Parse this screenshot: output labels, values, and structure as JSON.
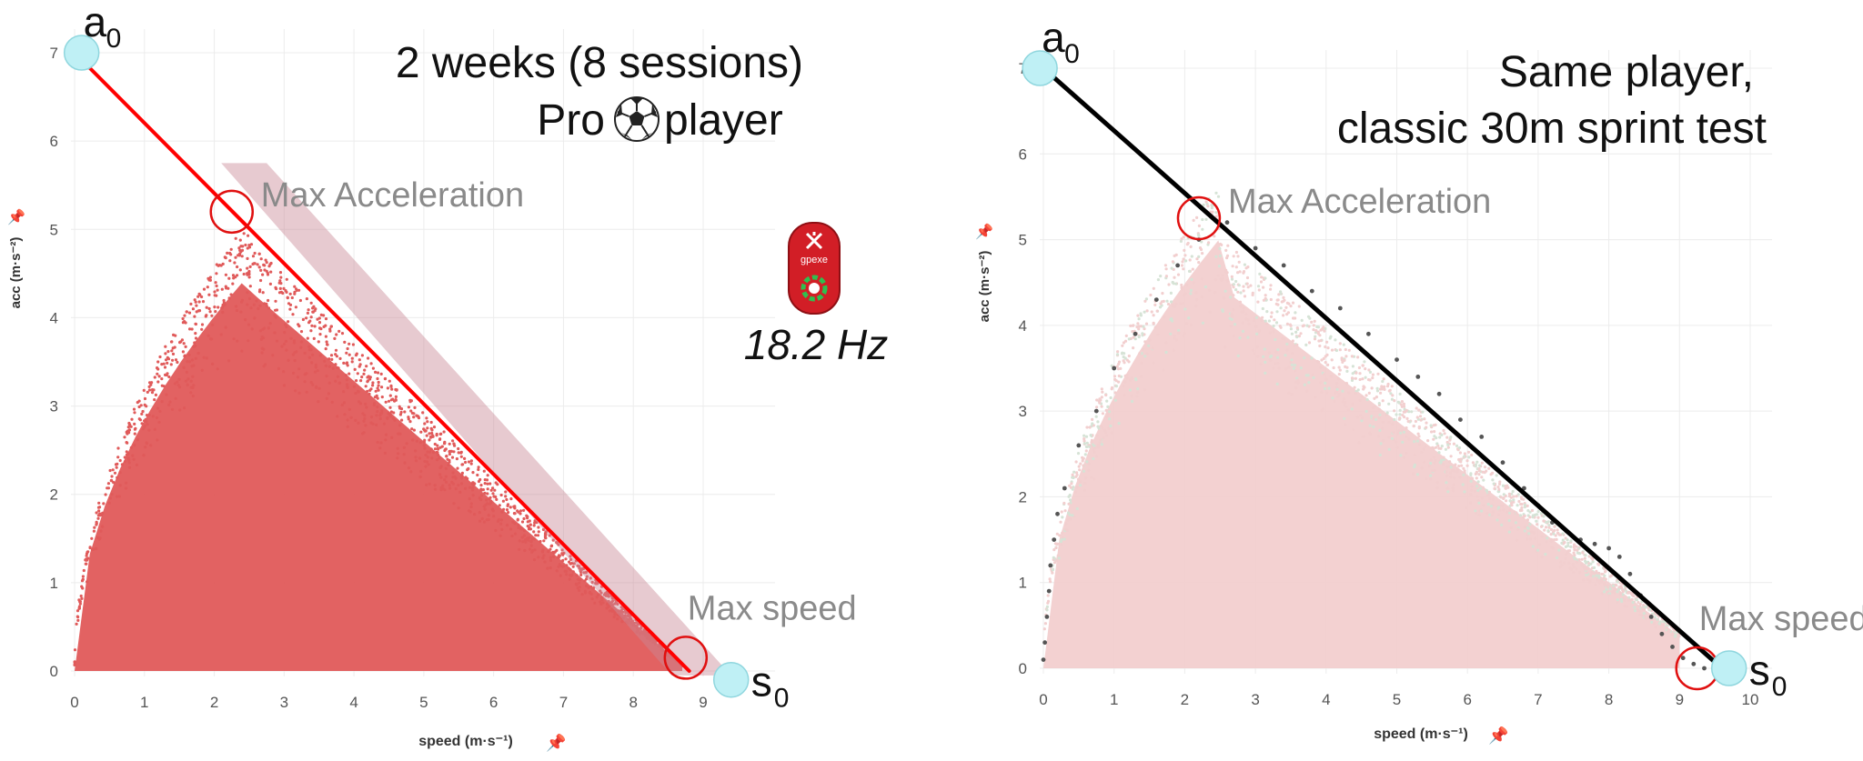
{
  "colors": {
    "left_points": "#e05a5a",
    "left_band": "#c98a96",
    "left_line": "#ff0000",
    "right_points_a": "#f2cfcf",
    "right_points_b": "#d6e3d6",
    "right_sprint_points": "#555555",
    "right_line": "#000000",
    "marker_fill": "#bff0f5",
    "circle": "#e01010",
    "annotation": "#8a8a8a",
    "grid": "#ececec",
    "tick": "#555555"
  },
  "left_device": {
    "icon": "gps-device-icon",
    "brand": "gpexe",
    "rate_label": "18.2 Hz"
  },
  "chart_data": [
    {
      "type": "scatter",
      "panel": "left",
      "title_line1": "2 weeks (8 sessions)",
      "title_line2_pre": "Pro ",
      "title_icon": "soccer-ball-icon",
      "title_line2_post": " player",
      "xlabel": "speed (m·s⁻¹)",
      "ylabel": "acc (m·s⁻²)",
      "xlim": [
        0,
        9
      ],
      "ylim": [
        0,
        7
      ],
      "xticks": [
        "0",
        "1",
        "2",
        "3",
        "4",
        "5",
        "6",
        "7",
        "8",
        "9"
      ],
      "yticks": [
        "0",
        "1",
        "2",
        "3",
        "4",
        "5",
        "6",
        "7"
      ],
      "grid": true,
      "profile_line": {
        "a0": 7.0,
        "s0": 8.8
      },
      "marker_a0": {
        "label": "a",
        "sub": "0",
        "x": 0.1,
        "y": 7.0
      },
      "marker_s0": {
        "label": "s",
        "sub": "0",
        "x": 9.4,
        "y": -0.1
      },
      "annotations": [
        {
          "text": "Max Acceleration",
          "x": 2.25,
          "y": 5.2
        },
        {
          "text": "Max speed",
          "x": 8.75,
          "y": 0.15
        }
      ],
      "cloud": {
        "peak_speed": 2.5,
        "peak_acc": 4.8,
        "max_speed": 8.7,
        "max_acc": 5.1
      }
    },
    {
      "type": "scatter",
      "panel": "right",
      "title_line1": "Same player,",
      "title_line2": "classic 30m sprint test",
      "xlabel": "speed (m·s⁻¹)",
      "ylabel": "acc (m·s⁻²)",
      "xlim": [
        0,
        10
      ],
      "ylim": [
        0,
        7
      ],
      "xticks": [
        "0",
        "1",
        "2",
        "3",
        "4",
        "5",
        "6",
        "7",
        "8",
        "9",
        "10"
      ],
      "yticks": [
        "0",
        "1",
        "2",
        "3",
        "4",
        "5",
        "6",
        "7"
      ],
      "grid": true,
      "profile_line": {
        "a0": 7.0,
        "s0": 9.6
      },
      "marker_a0": {
        "label": "a",
        "sub": "0",
        "x": -0.05,
        "y": 7.0
      },
      "marker_s0": {
        "label": "s",
        "sub": "0",
        "x": 9.7,
        "y": 0.0
      },
      "annotations": [
        {
          "text": "Max Acceleration",
          "x": 2.2,
          "y": 5.25
        },
        {
          "text": "Max speed",
          "x": 9.25,
          "y": 0.0
        }
      ],
      "cloud": {
        "peak_speed": 2.5,
        "peak_acc": 5.5,
        "max_speed": 9.0,
        "max_acc": 5.7
      },
      "sprint_points": [
        [
          0.0,
          0.1
        ],
        [
          0.02,
          0.3
        ],
        [
          0.05,
          0.6
        ],
        [
          0.08,
          0.9
        ],
        [
          0.1,
          1.2
        ],
        [
          0.15,
          1.5
        ],
        [
          0.2,
          1.8
        ],
        [
          0.3,
          2.1
        ],
        [
          0.5,
          2.6
        ],
        [
          0.75,
          3.0
        ],
        [
          1.0,
          3.5
        ],
        [
          1.3,
          3.9
        ],
        [
          1.6,
          4.3
        ],
        [
          1.9,
          4.7
        ],
        [
          2.2,
          5.0
        ],
        [
          2.6,
          5.2
        ],
        [
          3.0,
          4.9
        ],
        [
          3.4,
          4.7
        ],
        [
          3.8,
          4.4
        ],
        [
          4.2,
          4.2
        ],
        [
          4.6,
          3.9
        ],
        [
          5.0,
          3.6
        ],
        [
          5.3,
          3.4
        ],
        [
          5.6,
          3.2
        ],
        [
          5.9,
          2.9
        ],
        [
          6.2,
          2.7
        ],
        [
          6.5,
          2.4
        ],
        [
          6.8,
          2.1
        ],
        [
          7.0,
          1.9
        ],
        [
          7.2,
          1.7
        ],
        [
          7.4,
          1.6
        ],
        [
          7.6,
          1.5
        ],
        [
          7.8,
          1.45
        ],
        [
          8.0,
          1.4
        ],
        [
          8.15,
          1.3
        ],
        [
          8.3,
          1.1
        ],
        [
          8.45,
          0.85
        ],
        [
          8.6,
          0.6
        ],
        [
          8.75,
          0.4
        ],
        [
          8.9,
          0.25
        ],
        [
          9.05,
          0.12
        ],
        [
          9.2,
          0.05
        ],
        [
          9.35,
          0.0
        ]
      ]
    }
  ]
}
